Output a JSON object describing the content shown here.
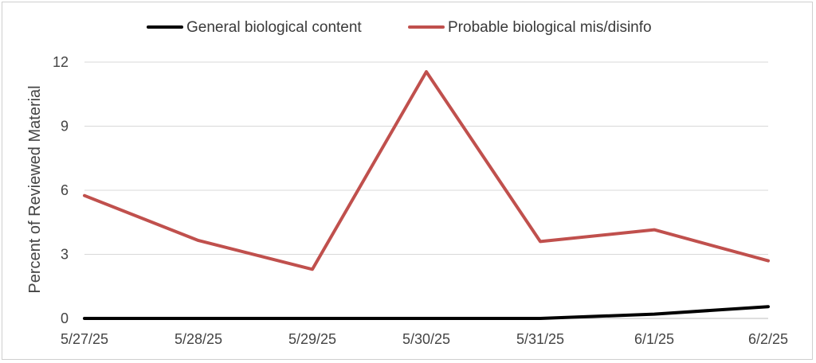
{
  "chart_data": {
    "type": "line",
    "x": [
      "5/27/25",
      "5/28/25",
      "5/29/25",
      "5/30/25",
      "5/31/25",
      "6/1/25",
      "6/2/25"
    ],
    "series": [
      {
        "name": "General biological content",
        "color": "#000000",
        "values": [
          0,
          0,
          0,
          0,
          0,
          0.2,
          0.55
        ]
      },
      {
        "name": "Probable biological mis/disinfo",
        "color": "#c0504d",
        "values": [
          5.75,
          3.65,
          2.3,
          11.55,
          3.6,
          4.15,
          2.7
        ]
      }
    ],
    "title": "",
    "xlabel": "",
    "ylabel": "Percent of Reviewed Material",
    "ylim": [
      0,
      12
    ],
    "yticks": [
      0,
      3,
      6,
      9,
      12
    ],
    "grid": "horizontal",
    "legend": "top-center"
  }
}
